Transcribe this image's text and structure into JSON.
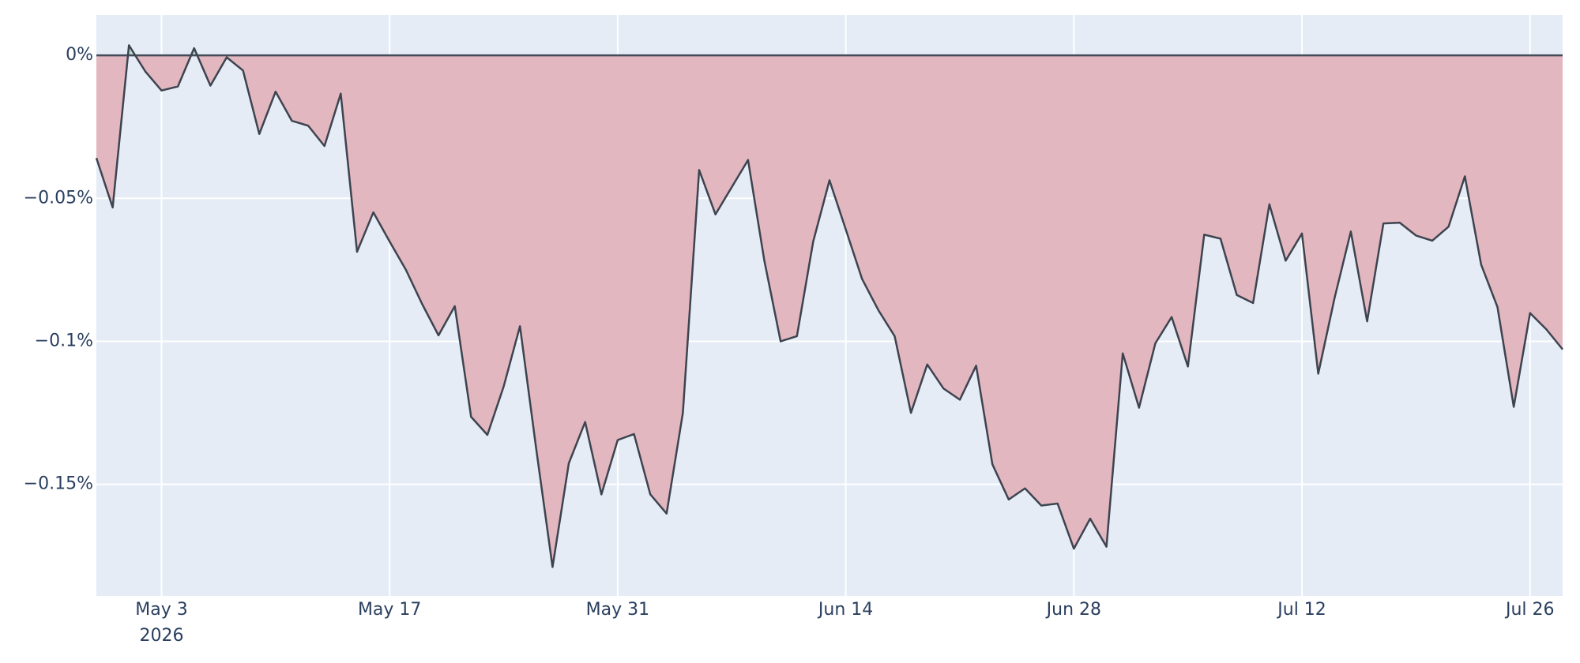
{
  "chart_data": {
    "type": "line",
    "x": [
      "2026-04-29",
      "2026-04-30",
      "2026-05-01",
      "2026-05-02",
      "2026-05-03",
      "2026-05-04",
      "2026-05-05",
      "2026-05-06",
      "2026-05-07",
      "2026-05-08",
      "2026-05-09",
      "2026-05-10",
      "2026-05-11",
      "2026-05-12",
      "2026-05-13",
      "2026-05-14",
      "2026-05-15",
      "2026-05-16",
      "2026-05-17",
      "2026-05-18",
      "2026-05-19",
      "2026-05-20",
      "2026-05-21",
      "2026-05-22",
      "2026-05-23",
      "2026-05-24",
      "2026-05-25",
      "2026-05-26",
      "2026-05-27",
      "2026-05-28",
      "2026-05-29",
      "2026-05-30",
      "2026-05-31",
      "2026-06-01",
      "2026-06-02",
      "2026-06-03",
      "2026-06-04",
      "2026-06-05",
      "2026-06-06",
      "2026-06-07",
      "2026-06-08",
      "2026-06-09",
      "2026-06-10",
      "2026-06-11",
      "2026-06-12",
      "2026-06-13",
      "2026-06-14",
      "2026-06-15",
      "2026-06-16",
      "2026-06-17",
      "2026-06-18",
      "2026-06-19",
      "2026-06-20",
      "2026-06-21",
      "2026-06-22",
      "2026-06-23",
      "2026-06-24",
      "2026-06-25",
      "2026-06-26",
      "2026-06-27",
      "2026-06-28",
      "2026-06-29",
      "2026-06-30",
      "2026-07-01",
      "2026-07-02",
      "2026-07-03",
      "2026-07-04",
      "2026-07-05",
      "2026-07-06",
      "2026-07-07",
      "2026-07-08",
      "2026-07-09",
      "2026-07-10",
      "2026-07-11",
      "2026-07-12",
      "2026-07-13",
      "2026-07-14",
      "2026-07-15",
      "2026-07-16",
      "2026-07-17",
      "2026-07-18",
      "2026-07-19",
      "2026-07-20",
      "2026-07-21",
      "2026-07-22",
      "2026-07-23",
      "2026-07-24",
      "2026-07-25",
      "2026-07-26",
      "2026-07-27",
      "2026-07-28"
    ],
    "values": [
      -0.0359,
      -0.0532,
      0.0035,
      -0.0056,
      -0.0123,
      -0.0109,
      0.0025,
      -0.0106,
      -0.0007,
      -0.0053,
      -0.0275,
      -0.0127,
      -0.0229,
      -0.0246,
      -0.0317,
      -0.0134,
      -0.0687,
      -0.0549,
      -0.0651,
      -0.075,
      -0.087,
      -0.0979,
      -0.0877,
      -0.1264,
      -0.1327,
      -0.1158,
      -0.0947,
      -0.1377,
      -0.1789,
      -0.1426,
      -0.1282,
      -0.1535,
      -0.1345,
      -0.1324,
      -0.1535,
      -0.1602,
      -0.125,
      -0.0401,
      -0.0556,
      -0.0461,
      -0.0366,
      -0.0718,
      -0.1,
      -0.0982,
      -0.0651,
      -0.0437,
      -0.0609,
      -0.0782,
      -0.0891,
      -0.0982,
      -0.125,
      -0.1081,
      -0.1165,
      -0.1204,
      -0.1085,
      -0.143,
      -0.1553,
      -0.1514,
      -0.1574,
      -0.1567,
      -0.1725,
      -0.162,
      -0.1718,
      -0.1042,
      -0.1232,
      -0.1007,
      -0.0915,
      -0.1088,
      -0.0627,
      -0.0641,
      -0.0838,
      -0.0866,
      -0.0521,
      -0.0718,
      -0.0623,
      -0.1113,
      -0.0849,
      -0.0616,
      -0.093,
      -0.0588,
      -0.0585,
      -0.063,
      -0.0648,
      -0.0599,
      -0.0423,
      -0.0732,
      -0.088,
      -0.1229,
      -0.0901,
      -0.0958,
      -0.1028
    ],
    "color": "#3d4450",
    "fill_negative_color": "#e2b7bf",
    "fill_positive_color": "#b8dccd",
    "xlim": [
      "2026-04-29",
      "2026-07-28"
    ],
    "xticks": [
      {
        "value": "2026-05-03",
        "label": "May 3"
      },
      {
        "value": "2026-05-17",
        "label": "May 17"
      },
      {
        "value": "2026-05-31",
        "label": "May 31"
      },
      {
        "value": "2026-06-14",
        "label": "Jun 14"
      },
      {
        "value": "2026-06-28",
        "label": "Jun 28"
      },
      {
        "value": "2026-07-12",
        "label": "Jul 12"
      },
      {
        "value": "2026-07-26",
        "label": "Jul 26"
      }
    ],
    "x_year_label": "2026",
    "ylim": [
      -0.189,
      0.0141
    ],
    "yticks": [
      {
        "value": 0,
        "label": "0%"
      },
      {
        "value": -0.05,
        "label": "−0.05%"
      },
      {
        "value": -0.1,
        "label": "−0.1%"
      },
      {
        "value": -0.15,
        "label": "−0.15%"
      }
    ],
    "grid": true,
    "background": "#e5ecf6"
  }
}
